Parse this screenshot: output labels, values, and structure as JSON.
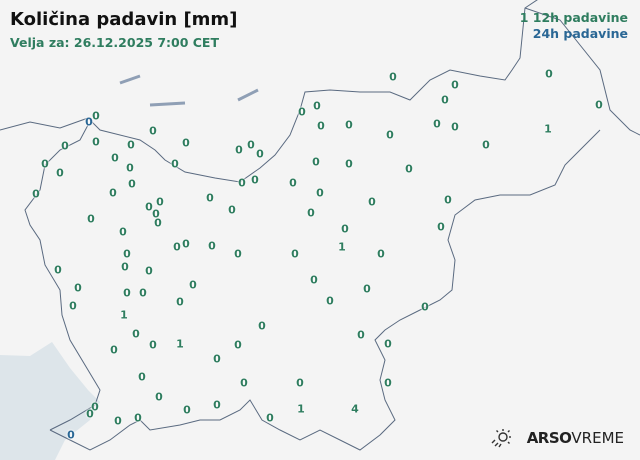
{
  "header": {
    "title": "Količina padavin [mm]",
    "valid_for": "Velja za: 26.12.2025 7:00 CET"
  },
  "legend": {
    "sample_value": "1",
    "label_12h": "12h padavine",
    "label_24h": "24h padavine"
  },
  "colors": {
    "precip_12h": "#2f7d5f",
    "precip_24h": "#2a6795",
    "background": "#f3f3f3",
    "sea": "#dde5ea",
    "border": "#5a6a80"
  },
  "stations": [
    {
      "v": "0",
      "t": "12h"
    },
    {
      "v": "0",
      "t": "12h"
    },
    {
      "v": "0",
      "t": "12h"
    },
    {
      "v": "0",
      "t": "12h"
    },
    {
      "v": "0",
      "t": "12h"
    },
    {
      "v": "0",
      "t": "12h"
    },
    {
      "v": "0",
      "t": "12h"
    },
    {
      "v": "0",
      "t": "12h"
    },
    {
      "v": "0",
      "t": "12h"
    },
    {
      "v": "0",
      "t": "12h"
    },
    {
      "v": "0",
      "t": "12h"
    },
    {
      "v": "0",
      "t": "12h"
    },
    {
      "v": "1",
      "t": "12h"
    },
    {
      "v": "0",
      "t": "12h"
    },
    {
      "v": "0",
      "t": "24h"
    },
    {
      "v": "0",
      "t": "12h"
    },
    {
      "v": "0",
      "t": "12h"
    },
    {
      "v": "0",
      "t": "12h"
    },
    {
      "v": "0",
      "t": "12h"
    },
    {
      "v": "0",
      "t": "12h"
    },
    {
      "v": "0",
      "t": "12h"
    },
    {
      "v": "0",
      "t": "12h"
    },
    {
      "v": "0",
      "t": "12h"
    },
    {
      "v": "0",
      "t": "12h"
    },
    {
      "v": "0",
      "t": "12h"
    },
    {
      "v": "0",
      "t": "12h"
    },
    {
      "v": "0",
      "t": "12h"
    },
    {
      "v": "0",
      "t": "12h"
    },
    {
      "v": "0",
      "t": "12h"
    },
    {
      "v": "0",
      "t": "12h"
    },
    {
      "v": "0",
      "t": "12h"
    },
    {
      "v": "0",
      "t": "12h"
    },
    {
      "v": "0",
      "t": "12h"
    },
    {
      "v": "0",
      "t": "12h"
    },
    {
      "v": "0",
      "t": "12h"
    },
    {
      "v": "0",
      "t": "12h"
    },
    {
      "v": "0",
      "t": "12h"
    },
    {
      "v": "0",
      "t": "12h"
    },
    {
      "v": "0",
      "t": "12h"
    },
    {
      "v": "0",
      "t": "12h"
    },
    {
      "v": "0",
      "t": "12h"
    },
    {
      "v": "0",
      "t": "12h"
    },
    {
      "v": "0",
      "t": "12h"
    },
    {
      "v": "0",
      "t": "12h"
    },
    {
      "v": "0",
      "t": "12h"
    },
    {
      "v": "0",
      "t": "12h"
    },
    {
      "v": "0",
      "t": "12h"
    },
    {
      "v": "0",
      "t": "12h"
    },
    {
      "v": "0",
      "t": "12h"
    },
    {
      "v": "0",
      "t": "12h"
    },
    {
      "v": "0",
      "t": "12h"
    },
    {
      "v": "0",
      "t": "12h"
    },
    {
      "v": "0",
      "t": "12h"
    },
    {
      "v": "0",
      "t": "12h"
    },
    {
      "v": "0",
      "t": "12h"
    },
    {
      "v": "0",
      "t": "12h"
    },
    {
      "v": "0",
      "t": "12h"
    },
    {
      "v": "0",
      "t": "12h"
    },
    {
      "v": "1",
      "t": "12h"
    },
    {
      "v": "0",
      "t": "12h"
    },
    {
      "v": "0",
      "t": "12h"
    },
    {
      "v": "0",
      "t": "12h"
    },
    {
      "v": "0",
      "t": "12h"
    },
    {
      "v": "0",
      "t": "12h"
    },
    {
      "v": "0",
      "t": "12h"
    },
    {
      "v": "0",
      "t": "12h"
    },
    {
      "v": "0",
      "t": "12h"
    },
    {
      "v": "0",
      "t": "12h"
    },
    {
      "v": "0",
      "t": "12h"
    },
    {
      "v": "0",
      "t": "12h"
    },
    {
      "v": "0",
      "t": "12h"
    },
    {
      "v": "0",
      "t": "12h"
    },
    {
      "v": "0",
      "t": "12h"
    },
    {
      "v": "1",
      "t": "12h"
    },
    {
      "v": "0",
      "t": "12h"
    },
    {
      "v": "0",
      "t": "12h"
    },
    {
      "v": "0",
      "t": "12h"
    },
    {
      "v": "0",
      "t": "12h"
    },
    {
      "v": "0",
      "t": "12h"
    },
    {
      "v": "1",
      "t": "12h"
    },
    {
      "v": "0",
      "t": "12h"
    },
    {
      "v": "0",
      "t": "12h"
    },
    {
      "v": "0",
      "t": "12h"
    },
    {
      "v": "0",
      "t": "12h"
    },
    {
      "v": "0",
      "t": "12h"
    },
    {
      "v": "0",
      "t": "12h"
    },
    {
      "v": "0",
      "t": "12h"
    },
    {
      "v": "0",
      "t": "12h"
    },
    {
      "v": "0",
      "t": "12h"
    },
    {
      "v": "0",
      "t": "12h"
    },
    {
      "v": "0",
      "t": "12h"
    },
    {
      "v": "0",
      "t": "12h"
    },
    {
      "v": "1",
      "t": "12h"
    },
    {
      "v": "4",
      "t": "12h"
    },
    {
      "v": "0",
      "t": "12h"
    },
    {
      "v": "0",
      "t": "12h"
    },
    {
      "v": "0",
      "t": "12h"
    },
    {
      "v": "0",
      "t": "24h"
    }
  ],
  "branding": {
    "logo_bold": "ARSO",
    "logo_light": "VREME",
    "logo_icon": "sun-rain-icon"
  }
}
